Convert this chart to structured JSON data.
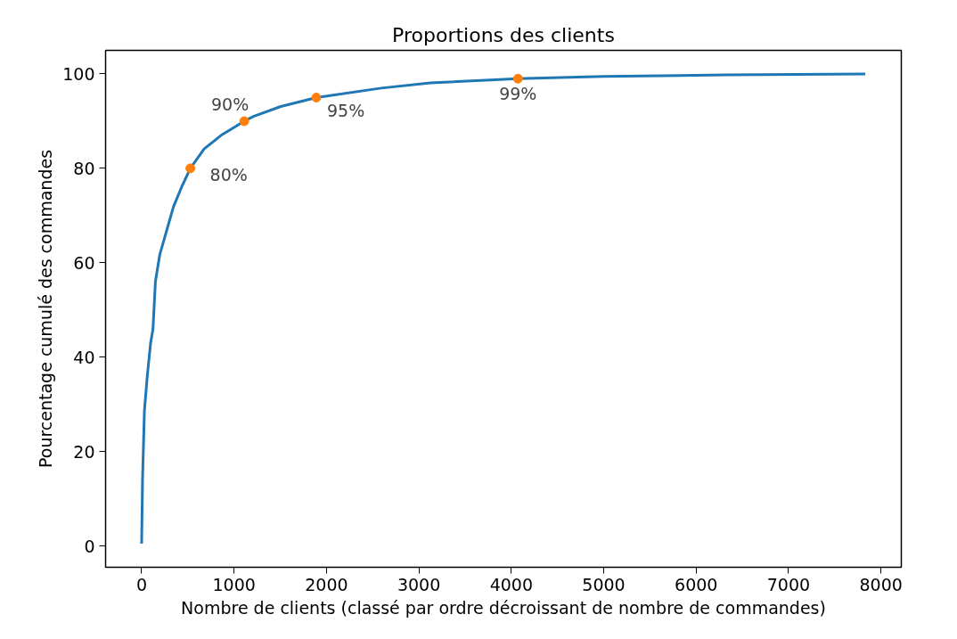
{
  "chart_data": {
    "type": "line",
    "title": "Proportions des clients",
    "xlabel": "Nombre de clients (classé par ordre décroissant de nombre de commandes)",
    "ylabel": "Pourcentage cumulé des commandes",
    "xlim": [
      -390,
      8220
    ],
    "ylim": [
      -4.5,
      105
    ],
    "xticks": [
      0,
      1000,
      2000,
      3000,
      4000,
      5000,
      6000,
      7000,
      8000
    ],
    "yticks": [
      0,
      20,
      40,
      60,
      80,
      100
    ],
    "grid": false,
    "series": [
      {
        "color": "#1f77b4",
        "x": [
          0,
          10,
          30,
          60,
          97,
          123,
          149,
          197,
          260,
          345,
          436,
          527,
          676,
          860,
          1110,
          1210,
          1505,
          1890,
          2592,
          3125,
          4072,
          4996,
          6332,
          7830
        ],
        "values": [
          0.5,
          14.2,
          28.6,
          35.8,
          43,
          46,
          56,
          61.8,
          66.1,
          71.9,
          76.2,
          80,
          84.1,
          87,
          90,
          91,
          93.1,
          95,
          97,
          98.1,
          99,
          99.5,
          99.8,
          100
        ]
      },
      {
        "type": "scatter",
        "color": "#ff7f0e",
        "marker": "circle",
        "x": [
          527,
          1110,
          1890,
          4072
        ],
        "values": [
          80,
          90,
          95,
          99
        ]
      }
    ],
    "annotations": [
      {
        "text": "80%",
        "x": 527,
        "y": 80
      },
      {
        "text": "90%",
        "x": 1110,
        "y": 90
      },
      {
        "text": "95%",
        "x": 1890,
        "y": 95
      },
      {
        "text": "99%",
        "x": 4072,
        "y": 99
      }
    ]
  }
}
